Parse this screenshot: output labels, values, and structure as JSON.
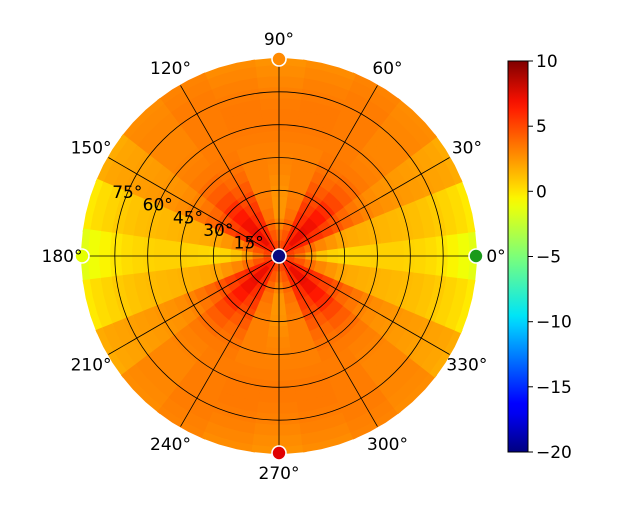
{
  "chart_data": {
    "type": "heatmap",
    "subtype": "polar",
    "angle_unit": "degrees",
    "angular_ticks": [
      {
        "value": 0,
        "label": "0°"
      },
      {
        "value": 30,
        "label": "30°"
      },
      {
        "value": 60,
        "label": "60°"
      },
      {
        "value": 90,
        "label": "90°"
      },
      {
        "value": 120,
        "label": "120°"
      },
      {
        "value": 150,
        "label": "150°"
      },
      {
        "value": 180,
        "label": "180°"
      },
      {
        "value": 210,
        "label": "210°"
      },
      {
        "value": 240,
        "label": "240°"
      },
      {
        "value": 270,
        "label": "270°"
      },
      {
        "value": 300,
        "label": "300°"
      },
      {
        "value": 330,
        "label": "330°"
      }
    ],
    "radial_ticks": [
      {
        "value": 15,
        "label": "15°"
      },
      {
        "value": 30,
        "label": "30°"
      },
      {
        "value": 45,
        "label": "45°"
      },
      {
        "value": 60,
        "label": "60°"
      },
      {
        "value": 75,
        "label": "75°"
      }
    ],
    "radial_range": [
      0,
      90
    ],
    "grid": true,
    "colormap": "jet",
    "colorbar": {
      "range": [
        -20,
        10
      ],
      "ticks": [
        {
          "value": 10,
          "label": "10"
        },
        {
          "value": 5,
          "label": "5"
        },
        {
          "value": 0,
          "label": "0"
        },
        {
          "value": -5,
          "label": "−5"
        },
        {
          "value": -10,
          "label": "−10"
        },
        {
          "value": -15,
          "label": "−15"
        },
        {
          "value": -20,
          "label": "−20"
        }
      ],
      "placement": "right"
    },
    "markers": [
      {
        "angle": 0,
        "radius": 90,
        "color": "#1a9a1a"
      },
      {
        "angle": 90,
        "radius": 90,
        "color": "#ff8a00"
      },
      {
        "angle": 180,
        "radius": 90,
        "color": "#e6ff00"
      },
      {
        "angle": 270,
        "radius": 90,
        "color": "#e00000"
      },
      {
        "angle": 0,
        "radius": 0,
        "color": "#0a0a80"
      }
    ],
    "field": {
      "radial_values": [
        0,
        5,
        10,
        15,
        20,
        25,
        30,
        35,
        40,
        45,
        50,
        55,
        60,
        65,
        70,
        75,
        80,
        85,
        90
      ],
      "angles": [
        0,
        15,
        30,
        45,
        60,
        75,
        90,
        105,
        120,
        135,
        150,
        165,
        180,
        195,
        210,
        225,
        240,
        255,
        270,
        285,
        300,
        315,
        330,
        345
      ],
      "values": [
        [
          5.5,
          5.5,
          5.5,
          5.5,
          5.5,
          5.5,
          5.5,
          5.5,
          5.5,
          5.5,
          5.5,
          5.5,
          5.5,
          5.5,
          5.5,
          5.5,
          5.5,
          5.5,
          5.5,
          5.5,
          5.5,
          5.5,
          5.5,
          5.5
        ],
        [
          4.8,
          5.2,
          6.0,
          6.5,
          5.8,
          5.0,
          4.6,
          5.0,
          5.8,
          6.5,
          6.0,
          5.2,
          4.8,
          5.2,
          6.0,
          6.5,
          5.8,
          5.0,
          4.6,
          5.0,
          5.8,
          6.5,
          6.0,
          5.2
        ],
        [
          3.5,
          4.6,
          6.3,
          7.2,
          6.0,
          4.5,
          3.8,
          4.5,
          6.0,
          7.2,
          6.3,
          4.6,
          3.5,
          4.6,
          6.3,
          7.2,
          6.0,
          4.5,
          3.8,
          4.5,
          6.0,
          7.2,
          6.3,
          4.6
        ],
        [
          2.2,
          3.8,
          6.1,
          7.2,
          6.0,
          4.0,
          3.0,
          4.0,
          6.0,
          7.2,
          6.1,
          3.8,
          2.2,
          3.8,
          6.1,
          7.2,
          6.0,
          4.0,
          3.0,
          4.0,
          6.0,
          7.2,
          6.1,
          3.8
        ],
        [
          1.0,
          3.0,
          5.7,
          7.0,
          5.8,
          3.6,
          2.5,
          3.6,
          5.8,
          7.0,
          5.7,
          3.0,
          1.0,
          3.0,
          5.7,
          7.0,
          5.8,
          3.6,
          2.5,
          3.6,
          5.8,
          7.0,
          5.7,
          3.0
        ],
        [
          0.5,
          2.5,
          5.2,
          6.5,
          5.4,
          3.3,
          2.5,
          3.3,
          5.4,
          6.5,
          5.2,
          2.5,
          0.5,
          2.5,
          5.2,
          6.5,
          5.4,
          3.3,
          2.5,
          3.3,
          5.4,
          6.5,
          5.2,
          2.5
        ],
        [
          0.3,
          2.0,
          4.6,
          5.8,
          4.9,
          3.2,
          2.6,
          3.2,
          4.9,
          5.8,
          4.6,
          2.0,
          0.3,
          2.0,
          4.6,
          5.8,
          4.9,
          3.2,
          2.6,
          3.2,
          4.9,
          5.8,
          4.6,
          2.0
        ],
        [
          0.4,
          1.8,
          4.0,
          5.0,
          4.4,
          3.2,
          2.8,
          3.2,
          4.4,
          5.0,
          4.0,
          1.8,
          0.4,
          1.8,
          4.0,
          5.0,
          4.4,
          3.2,
          2.8,
          3.2,
          4.4,
          5.0,
          4.0,
          1.8
        ],
        [
          0.5,
          1.7,
          3.5,
          4.3,
          3.9,
          3.2,
          3.0,
          3.2,
          3.9,
          4.3,
          3.5,
          1.7,
          0.5,
          1.7,
          3.5,
          4.3,
          3.9,
          3.2,
          3.0,
          3.2,
          3.9,
          4.3,
          3.5,
          1.7
        ],
        [
          0.6,
          1.6,
          3.1,
          3.8,
          3.6,
          3.2,
          3.1,
          3.2,
          3.6,
          3.8,
          3.1,
          1.6,
          0.6,
          1.6,
          3.1,
          3.8,
          3.6,
          3.2,
          3.1,
          3.2,
          3.6,
          3.8,
          3.1,
          1.6
        ],
        [
          0.6,
          1.5,
          2.8,
          3.4,
          3.4,
          3.2,
          3.2,
          3.2,
          3.4,
          3.4,
          2.8,
          1.5,
          0.6,
          1.5,
          2.8,
          3.4,
          3.4,
          3.2,
          3.2,
          3.2,
          3.4,
          3.4,
          2.8,
          1.5
        ],
        [
          0.6,
          1.4,
          2.6,
          3.2,
          3.3,
          3.3,
          3.3,
          3.3,
          3.3,
          3.2,
          2.6,
          1.4,
          0.6,
          1.4,
          2.6,
          3.2,
          3.3,
          3.3,
          3.3,
          3.3,
          3.3,
          3.2,
          2.6,
          1.4
        ],
        [
          0.5,
          1.3,
          2.5,
          3.1,
          3.3,
          3.4,
          3.4,
          3.4,
          3.3,
          3.1,
          2.5,
          1.3,
          0.5,
          1.3,
          2.5,
          3.1,
          3.3,
          3.4,
          3.4,
          3.4,
          3.3,
          3.1,
          2.5,
          1.3
        ],
        [
          0.4,
          1.2,
          2.4,
          3.0,
          3.3,
          3.4,
          3.4,
          3.4,
          3.3,
          3.0,
          2.4,
          1.2,
          0.4,
          1.2,
          2.4,
          3.0,
          3.3,
          3.4,
          3.4,
          3.4,
          3.3,
          3.0,
          2.4,
          1.2
        ],
        [
          0.2,
          1.0,
          2.3,
          3.0,
          3.3,
          3.4,
          3.3,
          3.4,
          3.3,
          3.0,
          2.3,
          1.0,
          0.2,
          1.0,
          2.3,
          3.0,
          3.3,
          3.4,
          3.3,
          3.4,
          3.3,
          3.0,
          2.3,
          1.0
        ],
        [
          -0.1,
          0.8,
          2.2,
          3.0,
          3.3,
          3.3,
          3.2,
          3.3,
          3.3,
          3.0,
          2.2,
          0.8,
          -0.1,
          0.8,
          2.2,
          3.0,
          3.3,
          3.3,
          3.2,
          3.3,
          3.3,
          3.0,
          2.2,
          0.8
        ],
        [
          -0.5,
          0.5,
          2.1,
          3.0,
          3.3,
          3.2,
          3.0,
          3.2,
          3.3,
          3.0,
          2.1,
          0.5,
          -0.5,
          0.5,
          2.1,
          3.0,
          3.3,
          3.2,
          3.0,
          3.2,
          3.3,
          3.0,
          2.1,
          0.5
        ],
        [
          -1.0,
          0.2,
          2.0,
          2.9,
          3.2,
          3.0,
          2.8,
          3.0,
          3.2,
          2.9,
          2.0,
          0.2,
          -1.0,
          0.2,
          2.0,
          2.9,
          3.2,
          3.0,
          2.8,
          3.0,
          3.2,
          2.9,
          2.0,
          0.2
        ],
        [
          -1.5,
          -0.2,
          1.8,
          2.8,
          3.1,
          2.8,
          2.6,
          2.8,
          3.1,
          2.8,
          1.8,
          -0.2,
          -1.5,
          -0.2,
          1.8,
          2.8,
          3.1,
          2.8,
          2.6,
          2.8,
          3.1,
          2.8,
          1.8,
          -0.2
        ]
      ]
    }
  }
}
